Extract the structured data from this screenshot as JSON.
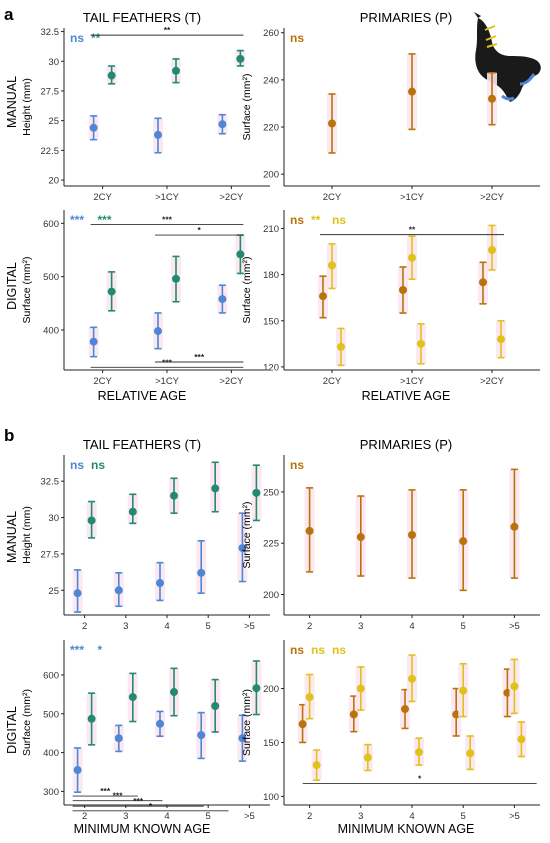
{
  "colors": {
    "blue": "#4f86d6",
    "teal": "#238a72",
    "brown": "#b8730c",
    "yellow": "#e0c21a",
    "shade": "#fbe6ee",
    "axis": "#222222",
    "sig": "#333333"
  },
  "panels": {
    "a": {
      "label": "a",
      "col_titles": [
        "TAIL FEATHERS (T)",
        "PRIMARIES (P)"
      ],
      "row_labels": [
        "MANUAL",
        "DIGITAL"
      ],
      "xlabel": "RELATIVE AGE"
    },
    "b": {
      "label": "b",
      "col_titles": [
        "TAIL FEATHERS (T)",
        "PRIMARIES (P)"
      ],
      "row_labels": [
        "MANUAL",
        "DIGITAL"
      ],
      "xlabel": "MINIMUM KNOWN AGE"
    }
  },
  "chart_data": [
    {
      "id": "a-manual-tail",
      "type": "scatter",
      "ylabel": "Height (mm)",
      "ylim": [
        19.5,
        32.8
      ],
      "yticks": [
        20.0,
        22.5,
        25.0,
        27.5,
        30.0,
        32.5
      ],
      "categories": [
        "2CY",
        ">1CY",
        ">2CY"
      ],
      "xlim": [
        0.4,
        3.6
      ],
      "series": [
        {
          "color": "blue",
          "x": [
            1,
            2,
            3
          ],
          "values": [
            24.4,
            23.8,
            24.7
          ],
          "lo": [
            23.4,
            22.3,
            23.9
          ],
          "hi": [
            25.4,
            25.2,
            25.5
          ],
          "offset": -1
        },
        {
          "color": "teal",
          "x": [
            1,
            2,
            3
          ],
          "values": [
            28.8,
            29.2,
            30.2
          ],
          "lo": [
            28.1,
            28.2,
            29.6
          ],
          "hi": [
            29.6,
            30.2,
            30.9
          ],
          "offset": 1
        }
      ],
      "sig_text": [
        {
          "text": "ns",
          "color": "blue"
        },
        {
          "text": "**",
          "color": "teal"
        }
      ],
      "brackets": [
        {
          "from": 1,
          "to": 3,
          "y": 32.2,
          "label": "**"
        }
      ]
    },
    {
      "id": "a-manual-primaries",
      "type": "scatter",
      "ylabel": "Surface (mm²)",
      "ylim": [
        195,
        262
      ],
      "yticks": [
        200,
        220,
        240,
        260
      ],
      "categories": [
        "2CY",
        ">1CY",
        ">2CY"
      ],
      "xlim": [
        0.4,
        3.6
      ],
      "series": [
        {
          "color": "brown",
          "x": [
            1,
            2,
            3
          ],
          "values": [
            221.5,
            235,
            232
          ],
          "lo": [
            209,
            219,
            221
          ],
          "hi": [
            234,
            251,
            243
          ],
          "offset": 0
        }
      ],
      "sig_text": [
        {
          "text": "ns",
          "color": "brown"
        }
      ],
      "brackets": []
    },
    {
      "id": "a-digital-tail",
      "type": "scatter",
      "ylabel": "Surface (mm²)",
      "ylim": [
        325,
        625
      ],
      "yticks": [
        400,
        500,
        600
      ],
      "categories": [
        "2CY",
        ">1CY",
        ">2CY"
      ],
      "xlim": [
        0.4,
        3.6
      ],
      "series": [
        {
          "color": "blue",
          "x": [
            1,
            2,
            3
          ],
          "values": [
            378,
            398,
            458
          ],
          "lo": [
            350,
            365,
            432
          ],
          "hi": [
            405,
            432,
            484
          ],
          "offset": -1
        },
        {
          "color": "teal",
          "x": [
            1,
            2,
            3
          ],
          "values": [
            472,
            496,
            542
          ],
          "lo": [
            436,
            453,
            506
          ],
          "hi": [
            509,
            538,
            578
          ],
          "offset": 1
        }
      ],
      "sig_text": [
        {
          "text": "***",
          "color": "blue"
        },
        {
          "text": "***",
          "color": "teal"
        }
      ],
      "brackets": [
        {
          "from": 1,
          "to": 3,
          "y": 598,
          "label": "***"
        },
        {
          "from": 2,
          "to": 3,
          "y": 578,
          "label": "*"
        },
        {
          "from": 2,
          "to": 3,
          "y": 340,
          "label": "***"
        },
        {
          "from": 1,
          "to": 3,
          "y": 330,
          "label": "***"
        }
      ]
    },
    {
      "id": "a-digital-primaries",
      "type": "scatter",
      "ylabel": "Surface (mm²)",
      "ylim": [
        118,
        222
      ],
      "yticks": [
        120,
        150,
        180,
        210
      ],
      "categories": [
        "2CY",
        ">1CY",
        ">2CY"
      ],
      "xlim": [
        0.4,
        3.6
      ],
      "series": [
        {
          "color": "brown",
          "x": [
            1,
            2,
            3
          ],
          "values": [
            166,
            170,
            175
          ],
          "lo": [
            152,
            155,
            161
          ],
          "hi": [
            179,
            185,
            188
          ],
          "offset": -1
        },
        {
          "color": "yellow",
          "x": [
            1,
            2,
            3
          ],
          "values": [
            186,
            191,
            196
          ],
          "lo": [
            171,
            177,
            183
          ],
          "hi": [
            200,
            205,
            212
          ],
          "offset": 0
        },
        {
          "color": "yellow",
          "x": [
            1,
            2,
            3
          ],
          "values": [
            133,
            135,
            138
          ],
          "lo": [
            121,
            122,
            126
          ],
          "hi": [
            145,
            148,
            150
          ],
          "offset": 1
        }
      ],
      "sig_text": [
        {
          "text": "ns",
          "color": "brown"
        },
        {
          "text": "**",
          "color": "yellow"
        },
        {
          "text": "ns",
          "color": "yellow"
        }
      ],
      "brackets": [
        {
          "from": 1,
          "to": 3,
          "y": 206,
          "label": "**"
        }
      ]
    },
    {
      "id": "b-manual-tail",
      "type": "scatter",
      "ylabel": "Height (mm)",
      "ylim": [
        23.3,
        34.3
      ],
      "yticks": [
        25.0,
        27.5,
        30.0,
        32.5
      ],
      "categories": [
        "2",
        "3",
        "4",
        "5",
        ">5"
      ],
      "xlim": [
        0.5,
        5.5
      ],
      "series": [
        {
          "color": "blue",
          "x": [
            1,
            2,
            3,
            4,
            5
          ],
          "values": [
            24.8,
            25.0,
            25.5,
            26.2,
            27.9
          ],
          "lo": [
            23.5,
            23.9,
            24.3,
            24.8,
            25.6
          ],
          "hi": [
            26.4,
            26.2,
            26.9,
            28.4,
            30.3
          ],
          "offset": -1
        },
        {
          "color": "teal",
          "x": [
            1,
            2,
            3,
            4,
            5
          ],
          "values": [
            29.8,
            30.4,
            31.5,
            32.0,
            31.7
          ],
          "lo": [
            28.6,
            29.6,
            30.3,
            30.4,
            29.8
          ],
          "hi": [
            31.1,
            31.6,
            32.7,
            33.8,
            33.6
          ],
          "offset": 1
        }
      ],
      "sig_text": [
        {
          "text": "ns",
          "color": "blue"
        },
        {
          "text": "ns",
          "color": "teal"
        }
      ],
      "brackets": []
    },
    {
      "id": "b-manual-primaries",
      "type": "scatter",
      "ylabel": "Surface (mm²)",
      "ylim": [
        190,
        268
      ],
      "yticks": [
        200,
        225,
        250
      ],
      "categories": [
        "2",
        "3",
        "4",
        "5",
        ">5"
      ],
      "xlim": [
        0.5,
        5.5
      ],
      "series": [
        {
          "color": "brown",
          "x": [
            1,
            2,
            3,
            4,
            5
          ],
          "values": [
            231,
            228,
            229,
            226,
            233
          ],
          "lo": [
            211,
            209,
            208,
            202,
            208
          ],
          "hi": [
            252,
            248,
            251,
            251,
            261
          ],
          "offset": 0
        }
      ],
      "sig_text": [
        {
          "text": "ns",
          "color": "brown"
        }
      ],
      "brackets": []
    },
    {
      "id": "b-digital-tail",
      "type": "scatter",
      "ylabel": "Surface (mm²)",
      "ylim": [
        265,
        690
      ],
      "yticks": [
        300,
        400,
        500,
        600
      ],
      "categories": [
        "2",
        "3",
        "4",
        "5",
        ">5"
      ],
      "xlim": [
        0.5,
        5.5
      ],
      "series": [
        {
          "color": "blue",
          "x": [
            1,
            2,
            3,
            4,
            5
          ],
          "values": [
            355,
            437,
            474,
            445,
            437
          ],
          "lo": [
            298,
            403,
            442,
            385,
            378
          ],
          "hi": [
            412,
            470,
            506,
            503,
            496
          ],
          "offset": -1
        },
        {
          "color": "teal",
          "x": [
            1,
            2,
            3,
            4,
            5
          ],
          "values": [
            487,
            543,
            556,
            520,
            566
          ],
          "lo": [
            420,
            480,
            495,
            453,
            498
          ],
          "hi": [
            553,
            604,
            617,
            588,
            636
          ],
          "offset": 1
        }
      ],
      "sig_text": [
        {
          "text": "***",
          "color": "blue"
        },
        {
          "text": "*",
          "color": "blue"
        }
      ],
      "brackets": [
        {
          "from": 1,
          "to": 2,
          "y": 288,
          "label": "***"
        },
        {
          "from": 1,
          "to": 2.6,
          "y": 276,
          "label": "***"
        },
        {
          "from": 1,
          "to": 3.6,
          "y": 262,
          "label": "***"
        },
        {
          "from": 1,
          "to": 4.2,
          "y": 250,
          "label": "*"
        }
      ]
    },
    {
      "id": "b-digital-primaries",
      "type": "scatter",
      "ylabel": "Surface (mm²)",
      "ylim": [
        92,
        245
      ],
      "yticks": [
        100,
        150,
        200
      ],
      "categories": [
        "2",
        "3",
        "4",
        "5",
        ">5"
      ],
      "xlim": [
        0.5,
        5.5
      ],
      "series": [
        {
          "color": "brown",
          "x": [
            1,
            2,
            3,
            4,
            5
          ],
          "values": [
            167,
            176,
            181,
            176,
            196
          ],
          "lo": [
            150,
            160,
            163,
            156,
            174
          ],
          "hi": [
            185,
            193,
            199,
            200,
            218
          ],
          "offset": -1
        },
        {
          "color": "yellow",
          "x": [
            1,
            2,
            3,
            4,
            5
          ],
          "values": [
            192,
            200,
            209,
            198,
            202
          ],
          "lo": [
            172,
            180,
            188,
            174,
            177
          ],
          "hi": [
            213,
            220,
            231,
            223,
            227
          ],
          "offset": 0
        },
        {
          "color": "yellow",
          "x": [
            1,
            2,
            3,
            4,
            5
          ],
          "values": [
            129,
            136,
            141,
            140,
            153
          ],
          "lo": [
            115,
            124,
            129,
            125,
            137
          ],
          "hi": [
            143,
            148,
            154,
            156,
            169
          ],
          "offset": 1
        }
      ],
      "sig_text": [
        {
          "text": "ns",
          "color": "brown"
        },
        {
          "text": "ns",
          "color": "yellow"
        },
        {
          "text": "ns",
          "color": "yellow"
        }
      ],
      "brackets": [
        {
          "from": 1.1,
          "to": 5.2,
          "y": 112,
          "label": "*"
        }
      ]
    }
  ]
}
